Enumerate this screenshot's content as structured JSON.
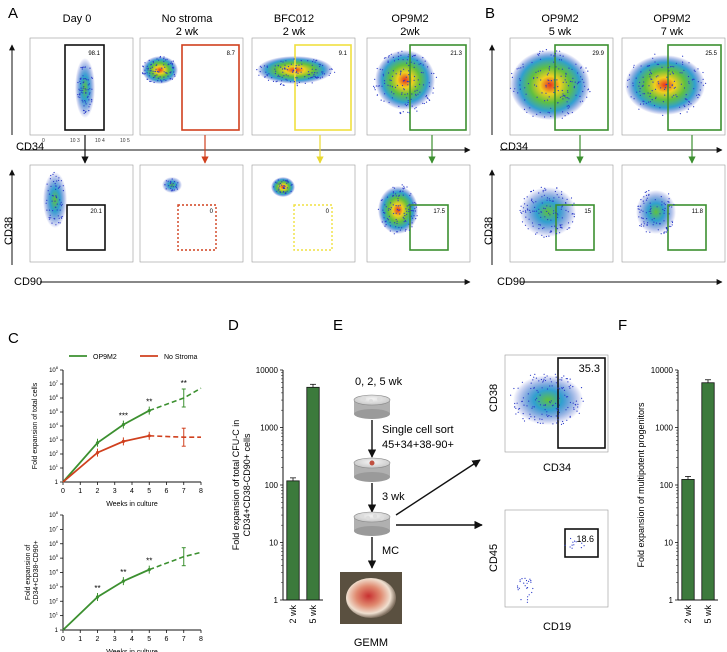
{
  "panel_letters": {
    "A": "A",
    "B": "B",
    "C": "C",
    "D": "D",
    "E": "E",
    "F": "F"
  },
  "panel_a": {
    "titles": [
      {
        "line1": "Day 0",
        "line2": ""
      },
      {
        "line1": "No stroma",
        "line2": "2 wk"
      },
      {
        "line1": "BFC012",
        "line2": "2 wk"
      },
      {
        "line1": "OP9M2",
        "line2": "2wk"
      }
    ],
    "gate_top_values": [
      "98.1",
      "8.7",
      "9.1",
      "21.3"
    ],
    "gate_bottom_values": [
      "20.1",
      "0",
      "0",
      "17.5"
    ],
    "gate_colors": [
      "#111111",
      "#d0401e",
      "#f0e040",
      "#3c9030"
    ],
    "x_axis_top": "CD34",
    "x_axis_bottom": "CD90",
    "y_axis_bottom": "CD38"
  },
  "panel_b": {
    "titles": [
      {
        "line1": "OP9M2",
        "line2": "5 wk"
      },
      {
        "line1": "OP9M2",
        "line2": "7 wk"
      }
    ],
    "gate_top_values": [
      "29.9",
      "25.5"
    ],
    "gate_bottom_values": [
      "15",
      "11.8"
    ],
    "gate_color": "#3c9030",
    "x_axis_top": "CD34",
    "x_axis_bottom": "CD90",
    "y_axis_bottom": "CD38"
  },
  "flow_tick_labels": {
    "neg": "0",
    "t3": "10 3",
    "t4": "10 4",
    "t5": "10 5"
  },
  "chart_data": [
    {
      "type": "line",
      "title": "",
      "xlabel": "Weeks in culture",
      "ylabel": "Fold expansion of total cells",
      "x_ticks": [
        "0",
        "1",
        "2",
        "3",
        "4",
        "5",
        "6",
        "7",
        "8"
      ],
      "y_ticks": [
        "1",
        "10^1",
        "10^2",
        "10^3",
        "10^4",
        "10^5",
        "10^6",
        "10^7",
        "10^8"
      ],
      "xlim": [
        0,
        8
      ],
      "ylim_log10": [
        0,
        8
      ],
      "legend": [
        "OP9M2",
        "No Stroma"
      ],
      "series": [
        {
          "name": "OP9M2",
          "color": "#3c9030",
          "x": [
            0,
            2,
            3.5,
            5
          ],
          "log10_y": [
            0,
            2.8,
            4.1,
            5.1
          ],
          "dashed_x": [
            5,
            7,
            8
          ],
          "dashed_log10_y": [
            5.1,
            6.0,
            6.7
          ]
        },
        {
          "name": "No Stroma",
          "color": "#d0401e",
          "x": [
            0,
            2,
            3.5,
            5
          ],
          "log10_y": [
            0,
            2.1,
            2.9,
            3.3
          ],
          "dashed_x": [
            5,
            7,
            8
          ],
          "dashed_log10_y": [
            3.3,
            3.2,
            3.2
          ]
        }
      ],
      "annotations": [
        {
          "x": 3.5,
          "label": "***"
        },
        {
          "x": 5,
          "label": "**"
        },
        {
          "x": 7,
          "label": "**"
        }
      ]
    },
    {
      "type": "line",
      "title": "",
      "xlabel": "Weeks in culture",
      "ylabel_line1": "Fold expansion of",
      "ylabel_line2": "CD34+CD38-CD90+",
      "x_ticks": [
        "0",
        "1",
        "2",
        "3",
        "4",
        "5",
        "6",
        "7",
        "8"
      ],
      "y_ticks": [
        "1",
        "10^1",
        "10^2",
        "10^3",
        "10^4",
        "10^5",
        "10^6",
        "10^7",
        "10^8"
      ],
      "xlim": [
        0,
        8
      ],
      "ylim_log10": [
        0,
        8
      ],
      "series": [
        {
          "name": "OP9M2",
          "color": "#3c9030",
          "x": [
            0,
            2,
            3.5,
            5
          ],
          "log10_y": [
            0,
            2.3,
            3.4,
            4.2
          ],
          "dashed_x": [
            5,
            7,
            8
          ],
          "dashed_log10_y": [
            4.2,
            5.1,
            5.4
          ]
        }
      ],
      "annotations": [
        {
          "x": 2,
          "label": "**"
        },
        {
          "x": 3.5,
          "label": "**"
        },
        {
          "x": 5,
          "label": "**"
        }
      ]
    },
    {
      "type": "bar",
      "ylabel_line1": "Fold expansion of total CFU-C in",
      "ylabel_line2": "CD34+CD38-CD90+ cells",
      "categories": [
        "2 wk",
        "5 wk"
      ],
      "values": [
        118,
        5000
      ],
      "y_ticks": [
        "1",
        "10",
        "100",
        "1000",
        "10000"
      ],
      "ylim": [
        1,
        10000
      ],
      "color": "#3c7a3c"
    },
    {
      "type": "bar",
      "ylabel": "Fold expansion of multipotent progenitors",
      "categories": [
        "2 wk",
        "5 wk"
      ],
      "values": [
        125,
        6000
      ],
      "y_ticks": [
        "1",
        "10",
        "100",
        "1000",
        "10000"
      ],
      "ylim": [
        1,
        10000
      ],
      "color": "#3c7a3c"
    }
  ],
  "panel_e": {
    "time_label": "0, 2, 5  wk",
    "sort_line1": "Single cell sort",
    "sort_line2": "45+34+38-90+",
    "step2_label": "3 wk",
    "step3_label": "MC",
    "colony_label": "GEMM",
    "flow1": {
      "x_label": "CD34",
      "y_label": "CD38",
      "gate_value": "35.3"
    },
    "flow2": {
      "x_label": "CD19",
      "y_label": "CD45",
      "gate_value": "18.6"
    }
  }
}
